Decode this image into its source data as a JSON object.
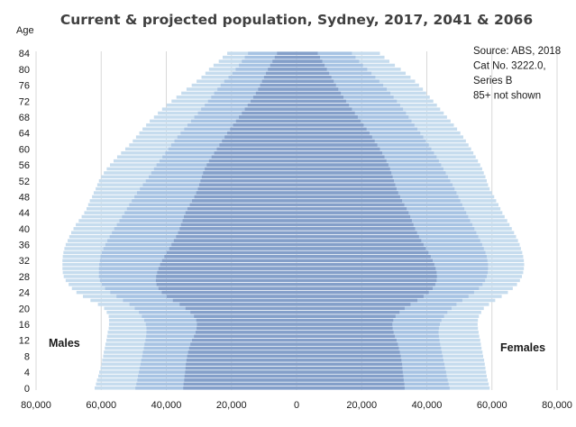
{
  "chart_data": {
    "type": "bar",
    "title": "Current & projected population, Sydney, 2017, 2041 & 2066",
    "ylabel": "Age",
    "ages": [
      0,
      1,
      2,
      3,
      4,
      5,
      6,
      7,
      8,
      9,
      10,
      11,
      12,
      13,
      14,
      15,
      16,
      17,
      18,
      19,
      20,
      21,
      22,
      23,
      24,
      25,
      26,
      27,
      28,
      29,
      30,
      31,
      32,
      33,
      34,
      35,
      36,
      37,
      38,
      39,
      40,
      41,
      42,
      43,
      44,
      45,
      46,
      47,
      48,
      49,
      50,
      51,
      52,
      53,
      54,
      55,
      56,
      57,
      58,
      59,
      60,
      61,
      62,
      63,
      64,
      65,
      66,
      67,
      68,
      69,
      70,
      71,
      72,
      73,
      74,
      75,
      76,
      77,
      78,
      79,
      80,
      81,
      82,
      83,
      84
    ],
    "age_ticks": [
      0,
      4,
      8,
      12,
      16,
      20,
      24,
      28,
      32,
      36,
      40,
      44,
      48,
      52,
      56,
      60,
      64,
      68,
      72,
      76,
      80,
      84
    ],
    "x_ticks": [
      -80000,
      -60000,
      -40000,
      -20000,
      0,
      20000,
      40000,
      60000,
      80000
    ],
    "x_tick_labels": [
      "80,000",
      "60,000",
      "40,000",
      "20,000",
      "0",
      "20,000",
      "40,000",
      "60,000",
      "80,000"
    ],
    "xlim": [
      -80000,
      80000
    ],
    "male_label": "Males",
    "female_label": "Females",
    "note_lines": [
      "Source: ABS, 2018",
      "Cat No. 3222.0,",
      "Series B",
      "85+ not shown"
    ],
    "colors": {
      "2066": "#c6dcee",
      "2041": "#a7c3e3",
      "2017": "#849fc9",
      "grid": "#d9d9d9"
    },
    "series": [
      {
        "name": "2066",
        "males": [
          62000,
          61600,
          61300,
          60900,
          60600,
          60200,
          59900,
          59700,
          59400,
          59200,
          58900,
          58700,
          58400,
          58200,
          58000,
          57700,
          57600,
          57600,
          57700,
          58300,
          59100,
          61000,
          63300,
          65600,
          67600,
          69000,
          70000,
          70900,
          71500,
          71800,
          71900,
          71900,
          71900,
          71800,
          71600,
          71300,
          70900,
          70300,
          69800,
          69200,
          68500,
          67800,
          66900,
          66000,
          65200,
          64500,
          64000,
          63500,
          62800,
          62300,
          61700,
          61200,
          60700,
          60000,
          59200,
          58300,
          57300,
          56200,
          55100,
          53900,
          52600,
          51400,
          50300,
          49300,
          48300,
          47300,
          46200,
          45100,
          43800,
          42600,
          41300,
          39900,
          38400,
          36900,
          35400,
          33800,
          32200,
          30700,
          29200,
          28000,
          26900,
          25500,
          23900,
          22700,
          21300
        ],
        "females": [
          59300,
          59000,
          58700,
          58400,
          58200,
          58000,
          57800,
          57600,
          57300,
          57100,
          56800,
          56600,
          56400,
          56100,
          55900,
          55700,
          55600,
          55700,
          56000,
          56700,
          57500,
          59100,
          61000,
          63000,
          64900,
          66400,
          67700,
          68600,
          69200,
          69600,
          69800,
          69900,
          69800,
          69600,
          69300,
          68900,
          68500,
          68000,
          67400,
          66800,
          66100,
          65400,
          64700,
          63900,
          63200,
          62600,
          62000,
          61300,
          60700,
          60000,
          59300,
          58800,
          58400,
          58000,
          57500,
          57000,
          56400,
          55700,
          55000,
          54300,
          53600,
          52800,
          52000,
          51200,
          50300,
          49300,
          48300,
          47300,
          46200,
          45200,
          44100,
          43100,
          42000,
          40900,
          39800,
          38800,
          37600,
          36400,
          35000,
          33500,
          32000,
          30200,
          28500,
          27000,
          25600
        ]
      },
      {
        "name": "2041",
        "males": [
          49500,
          49200,
          48900,
          48700,
          48400,
          48200,
          47900,
          47700,
          47400,
          47200,
          46900,
          46700,
          46400,
          46200,
          46100,
          46100,
          46300,
          46800,
          47500,
          48400,
          49700,
          51300,
          53300,
          55300,
          57200,
          58800,
          59800,
          60400,
          60700,
          60700,
          60700,
          60600,
          60400,
          60200,
          59800,
          59300,
          58700,
          58100,
          57400,
          56700,
          56000,
          55200,
          54400,
          53600,
          52800,
          52100,
          51400,
          50600,
          49800,
          49000,
          48100,
          47200,
          46300,
          45400,
          44600,
          43800,
          43000,
          42100,
          41200,
          40300,
          39400,
          38500,
          37500,
          36600,
          35600,
          34500,
          33500,
          32400,
          31400,
          30300,
          29300,
          28200,
          27200,
          26200,
          25300,
          24300,
          23300,
          22200,
          20900,
          19700,
          18700,
          17700,
          16800,
          15900,
          14900
        ],
        "females": [
          47000,
          46700,
          46400,
          46100,
          45900,
          45600,
          45400,
          45100,
          44900,
          44600,
          44400,
          44100,
          43900,
          43700,
          43600,
          43700,
          44000,
          44500,
          45300,
          46300,
          47600,
          49100,
          50900,
          52800,
          54500,
          56000,
          57100,
          57900,
          58400,
          58700,
          58800,
          58800,
          58600,
          58400,
          58000,
          57500,
          57000,
          56400,
          55800,
          55200,
          54600,
          54000,
          53300,
          52700,
          52100,
          51500,
          50900,
          50300,
          49700,
          49100,
          48500,
          47900,
          47200,
          46500,
          45800,
          45100,
          44400,
          43700,
          43000,
          42200,
          41400,
          40600,
          39700,
          38900,
          38000,
          37100,
          36200,
          35300,
          34400,
          33600,
          32700,
          31800,
          30800,
          29800,
          28800,
          27700,
          26600,
          25400,
          24200,
          23000,
          21700,
          20400,
          19200,
          18100,
          17000
        ]
      },
      {
        "name": "2017",
        "males": [
          34800,
          34700,
          34500,
          34400,
          34200,
          34100,
          34000,
          33800,
          33600,
          33300,
          33000,
          32600,
          32100,
          31500,
          31000,
          30700,
          30600,
          30800,
          31500,
          32600,
          34100,
          35900,
          38000,
          39900,
          41400,
          42400,
          43000,
          43200,
          43100,
          42800,
          42400,
          41900,
          41300,
          40600,
          39900,
          39100,
          38400,
          37700,
          37000,
          36400,
          35900,
          35500,
          35000,
          34600,
          34100,
          33500,
          32800,
          32100,
          31400,
          30800,
          30300,
          29900,
          29500,
          29100,
          28700,
          28200,
          27600,
          26900,
          26100,
          25300,
          24500,
          23700,
          22900,
          22100,
          21300,
          20400,
          19500,
          18600,
          17700,
          16800,
          15900,
          15000,
          14100,
          13300,
          12500,
          11800,
          11200,
          10600,
          10000,
          9400,
          8800,
          8100,
          7400,
          6700,
          6000
        ],
        "females": [
          33200,
          33100,
          32900,
          32800,
          32600,
          32500,
          32400,
          32200,
          32000,
          31700,
          31400,
          31100,
          30700,
          30200,
          29800,
          29500,
          29400,
          29700,
          30400,
          31600,
          33200,
          35000,
          37100,
          39000,
          40600,
          41800,
          42600,
          43000,
          43100,
          43000,
          42700,
          42300,
          41800,
          41200,
          40500,
          39700,
          39000,
          38300,
          37600,
          37000,
          36400,
          35900,
          35400,
          34900,
          34400,
          33800,
          33100,
          32400,
          31800,
          31200,
          30700,
          30300,
          29900,
          29500,
          29100,
          28700,
          28200,
          27600,
          27000,
          26300,
          25600,
          24800,
          24000,
          23200,
          22400,
          21500,
          20600,
          19700,
          18800,
          17900,
          17000,
          16100,
          15200,
          14400,
          13600,
          12800,
          12100,
          11400,
          10700,
          10000,
          9300,
          8600,
          7900,
          7200,
          6500
        ]
      }
    ]
  }
}
